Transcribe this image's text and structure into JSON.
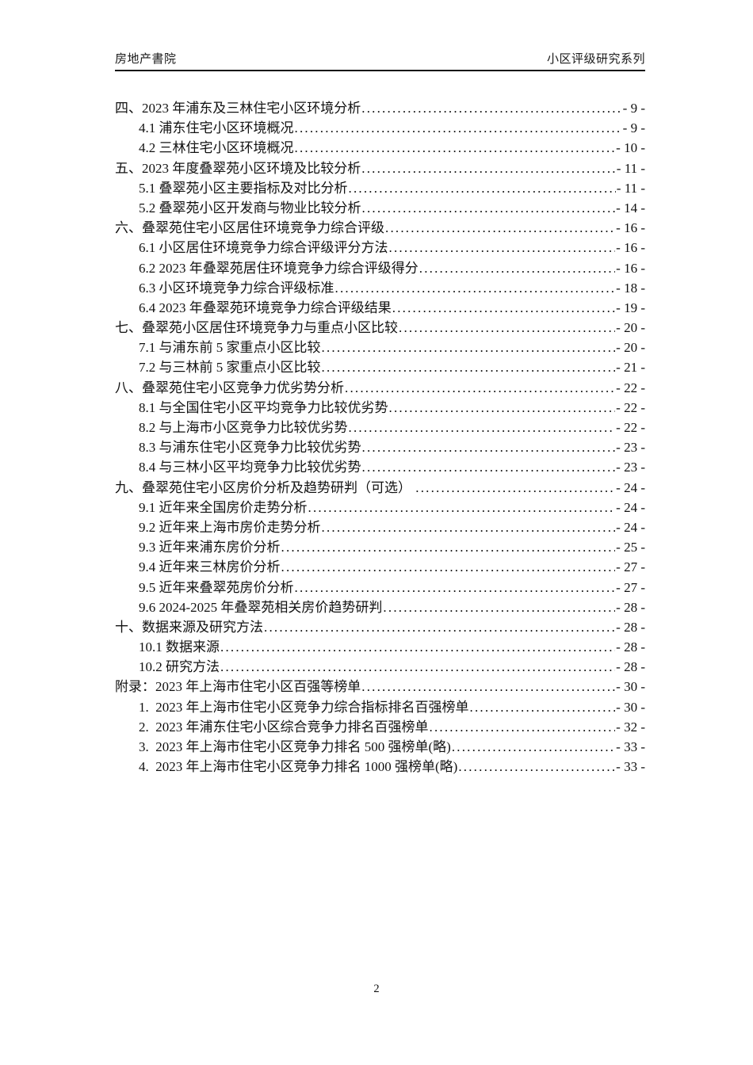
{
  "header": {
    "left": "房地产書院",
    "right": "小区评级研究系列"
  },
  "toc": {
    "entries": [
      {
        "level": 1,
        "title": "四、2023 年浦东及三林住宅小区环境分析",
        "page": "- 9 -"
      },
      {
        "level": 2,
        "title": "4.1 浦东住宅小区环境概况",
        "page": "- 9 -"
      },
      {
        "level": 2,
        "title": "4.2 三林住宅小区环境概况",
        "page": "- 10 -"
      },
      {
        "level": 1,
        "title": "五、2023 年度叠翠苑小区环境及比较分析",
        "page": "- 11 -"
      },
      {
        "level": 2,
        "title": "5.1 叠翠苑小区主要指标及对比分析",
        "page": "- 11 -"
      },
      {
        "level": 2,
        "title": "5.2 叠翠苑小区开发商与物业比较分析",
        "page": "- 14 -"
      },
      {
        "level": 1,
        "title": "六、叠翠苑住宅小区居住环境竞争力综合评级",
        "page": "- 16 -"
      },
      {
        "level": 2,
        "title": "6.1 小区居住环境竞争力综合评级评分方法",
        "page": "- 16 -"
      },
      {
        "level": 2,
        "title": "6.2 2023 年叠翠苑居住环境竞争力综合评级得分",
        "page": "- 16 -"
      },
      {
        "level": 2,
        "title": "6.3 小区环境竞争力综合评级标准",
        "page": "- 18 -"
      },
      {
        "level": 2,
        "title": "6.4 2023 年叠翠苑环境竞争力综合评级结果",
        "page": "- 19 -"
      },
      {
        "level": 1,
        "title": "七、叠翠苑小区居住环境竞争力与重点小区比较",
        "page": "- 20 -"
      },
      {
        "level": 2,
        "title": "7.1 与浦东前 5 家重点小区比较",
        "page": "- 20 -"
      },
      {
        "level": 2,
        "title": "7.2 与三林前 5 家重点小区比较",
        "page": "- 21 -"
      },
      {
        "level": 1,
        "title": "八、叠翠苑住宅小区竞争力优劣势分析",
        "page": "- 22 -"
      },
      {
        "level": 2,
        "title": "8.1 与全国住宅小区平均竞争力比较优劣势",
        "page": "- 22 -"
      },
      {
        "level": 2,
        "title": "8.2 与上海市小区竞争力比较优劣势",
        "page": "- 22 -"
      },
      {
        "level": 2,
        "title": "8.3 与浦东住宅小区竞争力比较优劣势",
        "page": "- 23 -"
      },
      {
        "level": 2,
        "title": "8.4 与三林小区平均竞争力比较优劣势",
        "page": "- 23 -"
      },
      {
        "level": 1,
        "title": "九、叠翠苑住宅小区房价分析及趋势研判（可选） ",
        "page": "- 24 -"
      },
      {
        "level": 2,
        "title": "9.1 近年来全国房价走势分析",
        "page": "- 24 -"
      },
      {
        "level": 2,
        "title": "9.2 近年来上海市房价走势分析",
        "page": "- 24 -"
      },
      {
        "level": 2,
        "title": "9.3 近年来浦东房价分析",
        "page": "- 25 -"
      },
      {
        "level": 2,
        "title": "9.4 近年来三林房价分析",
        "page": "- 27 -"
      },
      {
        "level": 2,
        "title": "9.5 近年来叠翠苑房价分析",
        "page": "- 27 -"
      },
      {
        "level": 2,
        "title": "9.6 2024-2025 年叠翠苑相关房价趋势研判",
        "page": "- 28 -"
      },
      {
        "level": 1,
        "title": "十、数据来源及研究方法",
        "page": "- 28 -"
      },
      {
        "level": 2,
        "title": "10.1 数据来源",
        "page": "- 28 -"
      },
      {
        "level": 2,
        "title": "10.2 研究方法",
        "page": "- 28 -"
      },
      {
        "level": 1,
        "title": "附录：2023 年上海市住宅小区百强等榜单",
        "page": "- 30 -"
      },
      {
        "level": 2,
        "title": "1.  2023 年上海市住宅小区竞争力综合指标排名百强榜单",
        "page": "- 30 -"
      },
      {
        "level": 2,
        "title": "2.  2023 年浦东住宅小区综合竞争力排名百强榜单",
        "page": "- 32 -"
      },
      {
        "level": 2,
        "title": "3.  2023 年上海市住宅小区竞争力排名 500 强榜单(略)",
        "page": "- 33 -"
      },
      {
        "level": 2,
        "title": "4.  2023 年上海市住宅小区竞争力排名 1000 强榜单(略)",
        "page": "- 33 -"
      }
    ]
  },
  "footer": {
    "page_number": "2"
  }
}
